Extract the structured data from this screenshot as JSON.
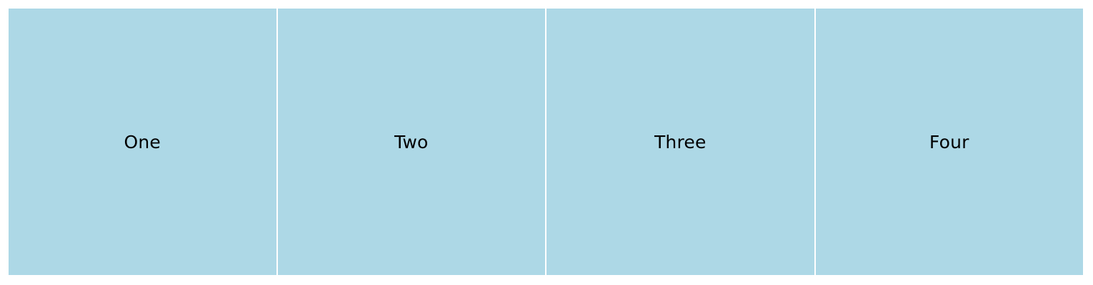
{
  "panels": [
    {
      "label": "One"
    },
    {
      "label": "Two"
    },
    {
      "label": "Three"
    },
    {
      "label": "Four"
    }
  ],
  "colors": {
    "panel_background": "#add8e6",
    "divider": "#ffffff",
    "text": "#000000"
  }
}
